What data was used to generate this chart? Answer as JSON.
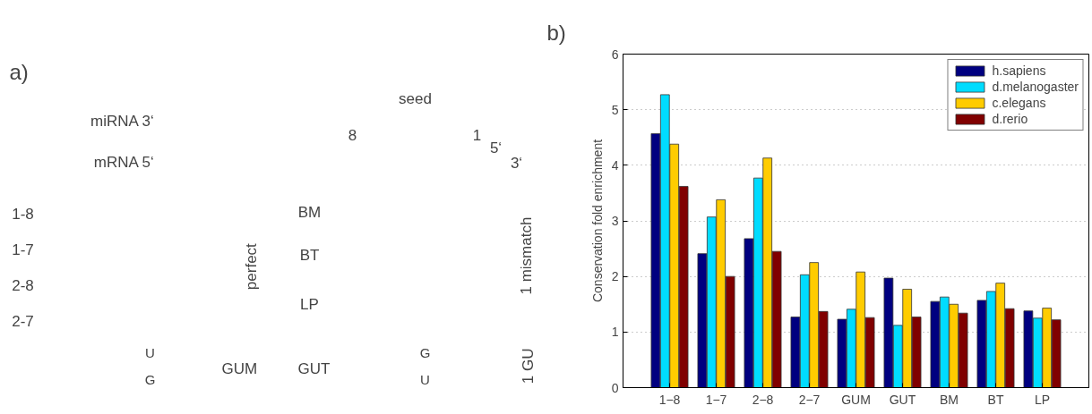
{
  "chart_data": [
    {
      "type": "other",
      "title": "a)",
      "annotations": [
        "seed",
        "miRNA  3‘",
        "mRNA  5‘",
        "8",
        "1",
        "5‘",
        "3‘",
        "1-8",
        "1-7",
        "2-8",
        "2-7",
        "perfect",
        "BM",
        "BT",
        "LP",
        "1 mismatch",
        "U",
        "G",
        "GUM",
        "GUT",
        "G",
        "U",
        "1 GU"
      ]
    },
    {
      "type": "bar",
      "title": "b)",
      "ylabel": "Conservation fold enrichment",
      "categories": [
        "1−8",
        "1−7",
        "2−8",
        "2−7",
        "GUM",
        "GUT",
        "BM",
        "BT",
        "LP"
      ],
      "series": [
        {
          "name": "h.sapiens",
          "color": "#000080",
          "values": [
            4.57,
            2.41,
            2.68,
            1.27,
            1.23,
            1.97,
            1.55,
            1.57,
            1.38
          ]
        },
        {
          "name": "d.melanogaster",
          "color": "#00dcff",
          "values": [
            5.27,
            3.07,
            3.77,
            2.03,
            1.41,
            1.12,
            1.63,
            1.73,
            1.25
          ]
        },
        {
          "name": "c.elegans",
          "color": "#ffcc00",
          "values": [
            4.38,
            3.38,
            4.13,
            2.25,
            2.08,
            1.77,
            1.5,
            1.88,
            1.43
          ]
        },
        {
          "name": "d.rerio",
          "color": "#800000",
          "values": [
            3.62,
            2.0,
            2.45,
            1.37,
            1.26,
            1.27,
            1.34,
            1.42,
            1.22
          ]
        }
      ],
      "ylim": [
        0,
        6
      ],
      "yticks": [
        0,
        1,
        2,
        3,
        4,
        5,
        6
      ],
      "grid": "y",
      "legend": "top right"
    }
  ]
}
